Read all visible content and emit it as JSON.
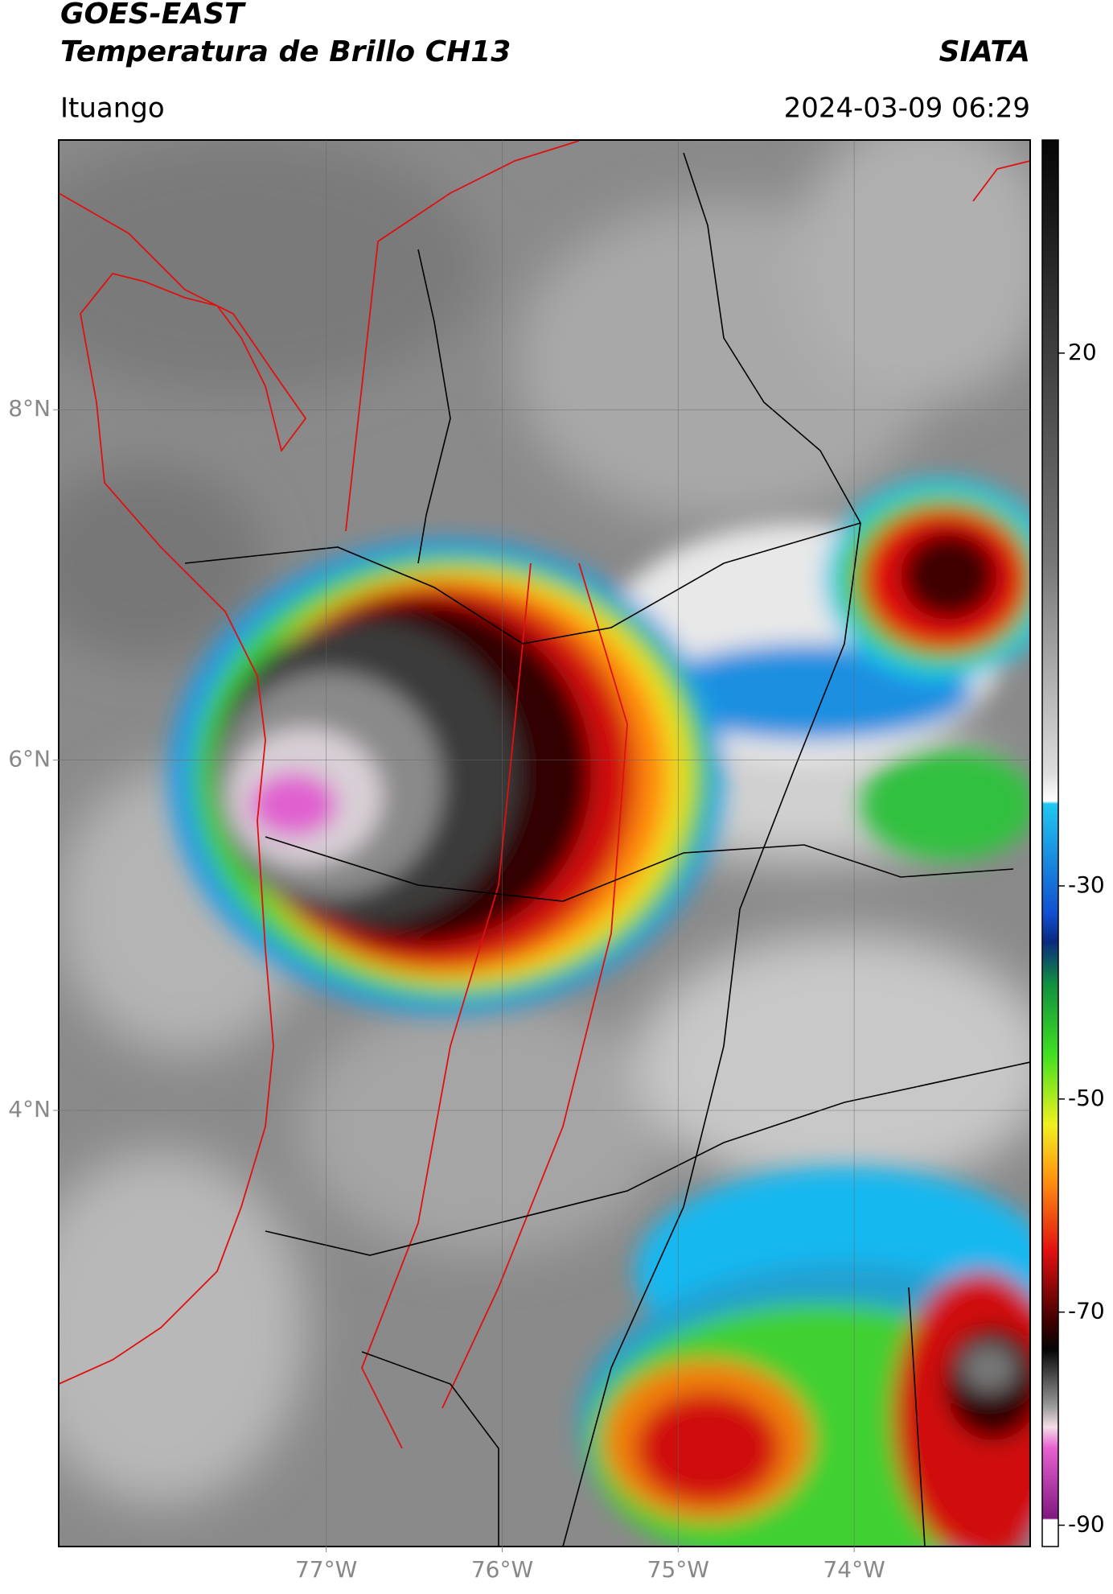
{
  "header": {
    "title": "GOES-EAST",
    "subtitle": "Temperatura de Brillo CH13",
    "source": "SIATA",
    "location": "Ituango",
    "datetime": "2024-03-09 06:29"
  },
  "map": {
    "xlim": [
      -78.52,
      -73.0
    ],
    "ylim": [
      1.51,
      9.54
    ],
    "xticks": [
      {
        "value": -77,
        "label": "77°W"
      },
      {
        "value": -76,
        "label": "76°W"
      },
      {
        "value": -75,
        "label": "75°W"
      },
      {
        "value": -74,
        "label": "74°W"
      }
    ],
    "yticks": [
      {
        "value": 4,
        "label": "4°N"
      },
      {
        "value": 6,
        "label": "6°N"
      },
      {
        "value": 8,
        "label": "8°N"
      }
    ],
    "grid": true
  },
  "colorbar": {
    "lim": [
      -92,
      40
    ],
    "ticks": [
      20,
      -30,
      -50,
      -70,
      -90
    ]
  }
}
